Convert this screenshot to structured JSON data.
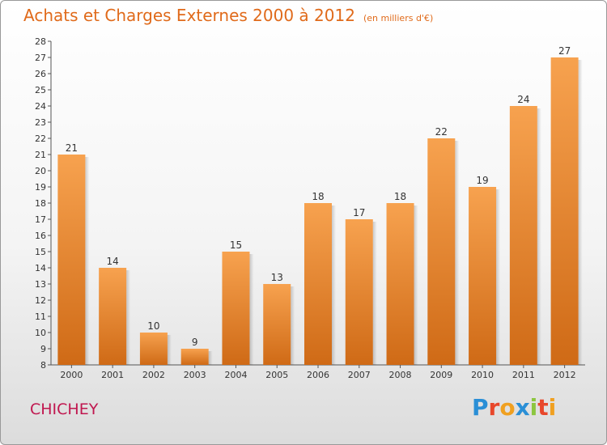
{
  "header": {
    "title": "Achats et Charges Externes 2000 à 2012",
    "unit": "(en milliers d'€)"
  },
  "commune": "CHICHEY",
  "logo": {
    "text": "Proxiti",
    "letters": [
      {
        "ch": "P",
        "color": "#2a8fd6"
      },
      {
        "ch": "r",
        "color": "#e8472b"
      },
      {
        "ch": "o",
        "color": "#f0a020"
      },
      {
        "ch": "x",
        "color": "#2a8fd6"
      },
      {
        "ch": "i",
        "color": "#8cc63f"
      },
      {
        "ch": "t",
        "color": "#e8472b"
      },
      {
        "ch": "i",
        "color": "#f0a020"
      }
    ]
  },
  "chart_data": {
    "type": "bar",
    "title": "Achats et Charges Externes 2000 à 2012",
    "subtitle": "(en milliers d'€)",
    "categories": [
      "2000",
      "2001",
      "2002",
      "2003",
      "2004",
      "2005",
      "2006",
      "2007",
      "2008",
      "2009",
      "2010",
      "2011",
      "2012"
    ],
    "values": [
      21,
      14,
      10,
      9,
      15,
      13,
      18,
      17,
      18,
      22,
      19,
      24,
      27
    ],
    "ylim": [
      8,
      28
    ],
    "yticks": [
      8,
      9,
      10,
      11,
      12,
      13,
      14,
      15,
      16,
      17,
      18,
      19,
      20,
      21,
      22,
      23,
      24,
      25,
      26,
      27,
      28
    ],
    "grid": false,
    "bar_color_top": "#f7a24f",
    "bar_color_bottom": "#cf6a16"
  }
}
